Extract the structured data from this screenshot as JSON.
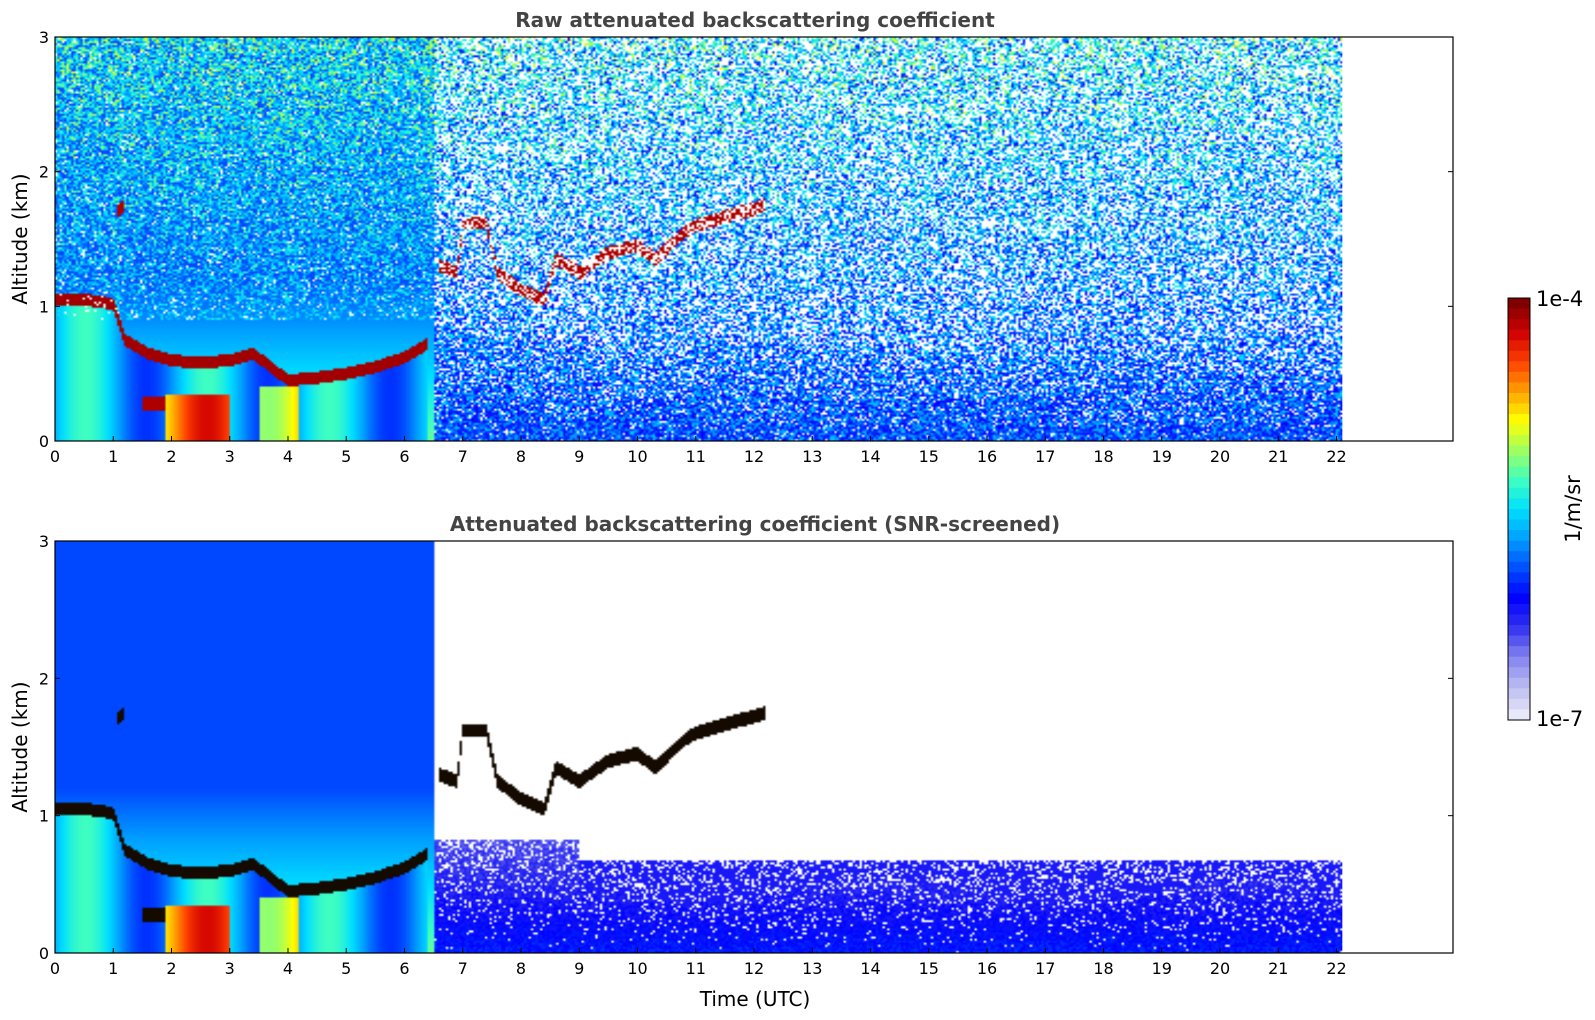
{
  "chart_data": [
    {
      "type": "heatmap",
      "title": "Raw attenuated backscattering coefficient",
      "xlabel": "",
      "ylabel": "Altitude (km)",
      "xlim": [
        0,
        24
      ],
      "ylim": [
        0,
        3
      ],
      "xticks": [
        "0",
        "1",
        "2",
        "3",
        "4",
        "5",
        "6",
        "7",
        "8",
        "9",
        "10",
        "11",
        "12",
        "13",
        "14",
        "15",
        "16",
        "17",
        "18",
        "19",
        "20",
        "21",
        "22"
      ],
      "yticks": [
        "0",
        "1",
        "2",
        "3"
      ],
      "data_extent_hours": 22.1,
      "noise_level": "high",
      "layers": [
        {
          "name": "boundary-layer-top",
          "points": [
            [
              0,
              1.05
            ],
            [
              0.5,
              1.05
            ],
            [
              1.0,
              1.02
            ],
            [
              1.2,
              0.75
            ],
            [
              1.6,
              0.65
            ],
            [
              2.0,
              0.6
            ],
            [
              2.5,
              0.58
            ],
            [
              3.0,
              0.6
            ],
            [
              3.4,
              0.65
            ],
            [
              3.7,
              0.55
            ],
            [
              4.0,
              0.45
            ],
            [
              4.5,
              0.47
            ],
            [
              5.0,
              0.5
            ],
            [
              5.5,
              0.55
            ],
            [
              6.0,
              0.62
            ],
            [
              6.4,
              0.72
            ]
          ]
        },
        {
          "name": "residual-layer",
          "points": [
            [
              1.05,
              1.7
            ],
            [
              1.2,
              1.75
            ]
          ]
        },
        {
          "name": "lower-layer",
          "points": [
            [
              1.5,
              0.28
            ],
            [
              1.9,
              0.28
            ]
          ]
        },
        {
          "name": "elevated-layers",
          "points": [
            [
              6.6,
              1.3
            ],
            [
              6.9,
              1.25
            ],
            [
              7.0,
              1.62
            ],
            [
              7.4,
              1.62
            ],
            [
              7.6,
              1.25
            ],
            [
              8.0,
              1.12
            ],
            [
              8.4,
              1.05
            ],
            [
              8.6,
              1.35
            ],
            [
              9.0,
              1.25
            ],
            [
              9.5,
              1.4
            ],
            [
              10.0,
              1.45
            ],
            [
              10.3,
              1.35
            ],
            [
              10.8,
              1.55
            ],
            [
              11.0,
              1.6
            ],
            [
              12.2,
              1.75
            ]
          ]
        }
      ]
    },
    {
      "type": "heatmap",
      "title": "Attenuated backscattering coefficient (SNR-screened)",
      "xlabel": "Time (UTC)",
      "ylabel": "Altitude (km)",
      "xlim": [
        0,
        24
      ],
      "ylim": [
        0,
        3
      ],
      "xticks": [
        "0",
        "1",
        "2",
        "3",
        "4",
        "5",
        "6",
        "7",
        "8",
        "9",
        "10",
        "11",
        "12",
        "13",
        "14",
        "15",
        "16",
        "17",
        "18",
        "19",
        "20",
        "21",
        "22"
      ],
      "yticks": [
        "0",
        "1",
        "2",
        "3"
      ],
      "data_extent_hours": 22.1,
      "noise_level": "screened",
      "layers": [
        {
          "name": "boundary-layer-top",
          "points": [
            [
              0,
              1.05
            ],
            [
              0.5,
              1.05
            ],
            [
              1.0,
              1.02
            ],
            [
              1.2,
              0.75
            ],
            [
              1.6,
              0.65
            ],
            [
              2.0,
              0.6
            ],
            [
              2.5,
              0.58
            ],
            [
              3.0,
              0.6
            ],
            [
              3.4,
              0.65
            ],
            [
              3.7,
              0.55
            ],
            [
              4.0,
              0.45
            ],
            [
              4.5,
              0.47
            ],
            [
              5.0,
              0.5
            ],
            [
              5.5,
              0.55
            ],
            [
              6.0,
              0.62
            ],
            [
              6.4,
              0.72
            ]
          ]
        },
        {
          "name": "residual-layer",
          "points": [
            [
              1.05,
              1.7
            ],
            [
              1.2,
              1.75
            ]
          ]
        },
        {
          "name": "lower-layer",
          "points": [
            [
              1.5,
              0.28
            ],
            [
              1.9,
              0.28
            ]
          ]
        },
        {
          "name": "elevated-layers",
          "points": [
            [
              6.6,
              1.3
            ],
            [
              6.9,
              1.25
            ],
            [
              7.0,
              1.62
            ],
            [
              7.4,
              1.62
            ],
            [
              7.6,
              1.25
            ],
            [
              8.0,
              1.12
            ],
            [
              8.4,
              1.05
            ],
            [
              8.6,
              1.35
            ],
            [
              9.0,
              1.25
            ],
            [
              9.5,
              1.4
            ],
            [
              10.0,
              1.45
            ],
            [
              10.3,
              1.35
            ],
            [
              10.8,
              1.55
            ],
            [
              11.0,
              1.6
            ],
            [
              12.2,
              1.75
            ]
          ]
        }
      ]
    }
  ],
  "colorbar": {
    "label": "1/m/sr",
    "min_label": "1e-7",
    "max_label": "1e-4",
    "scale": "log",
    "colors": [
      "#e8e8f8",
      "#b8b8f0",
      "#8080f0",
      "#3030f0",
      "#0000ff",
      "#0050ff",
      "#00a0ff",
      "#00e0ff",
      "#40ffc0",
      "#a0ff60",
      "#ffff00",
      "#ffa000",
      "#ff4000",
      "#d00000",
      "#800000"
    ]
  }
}
